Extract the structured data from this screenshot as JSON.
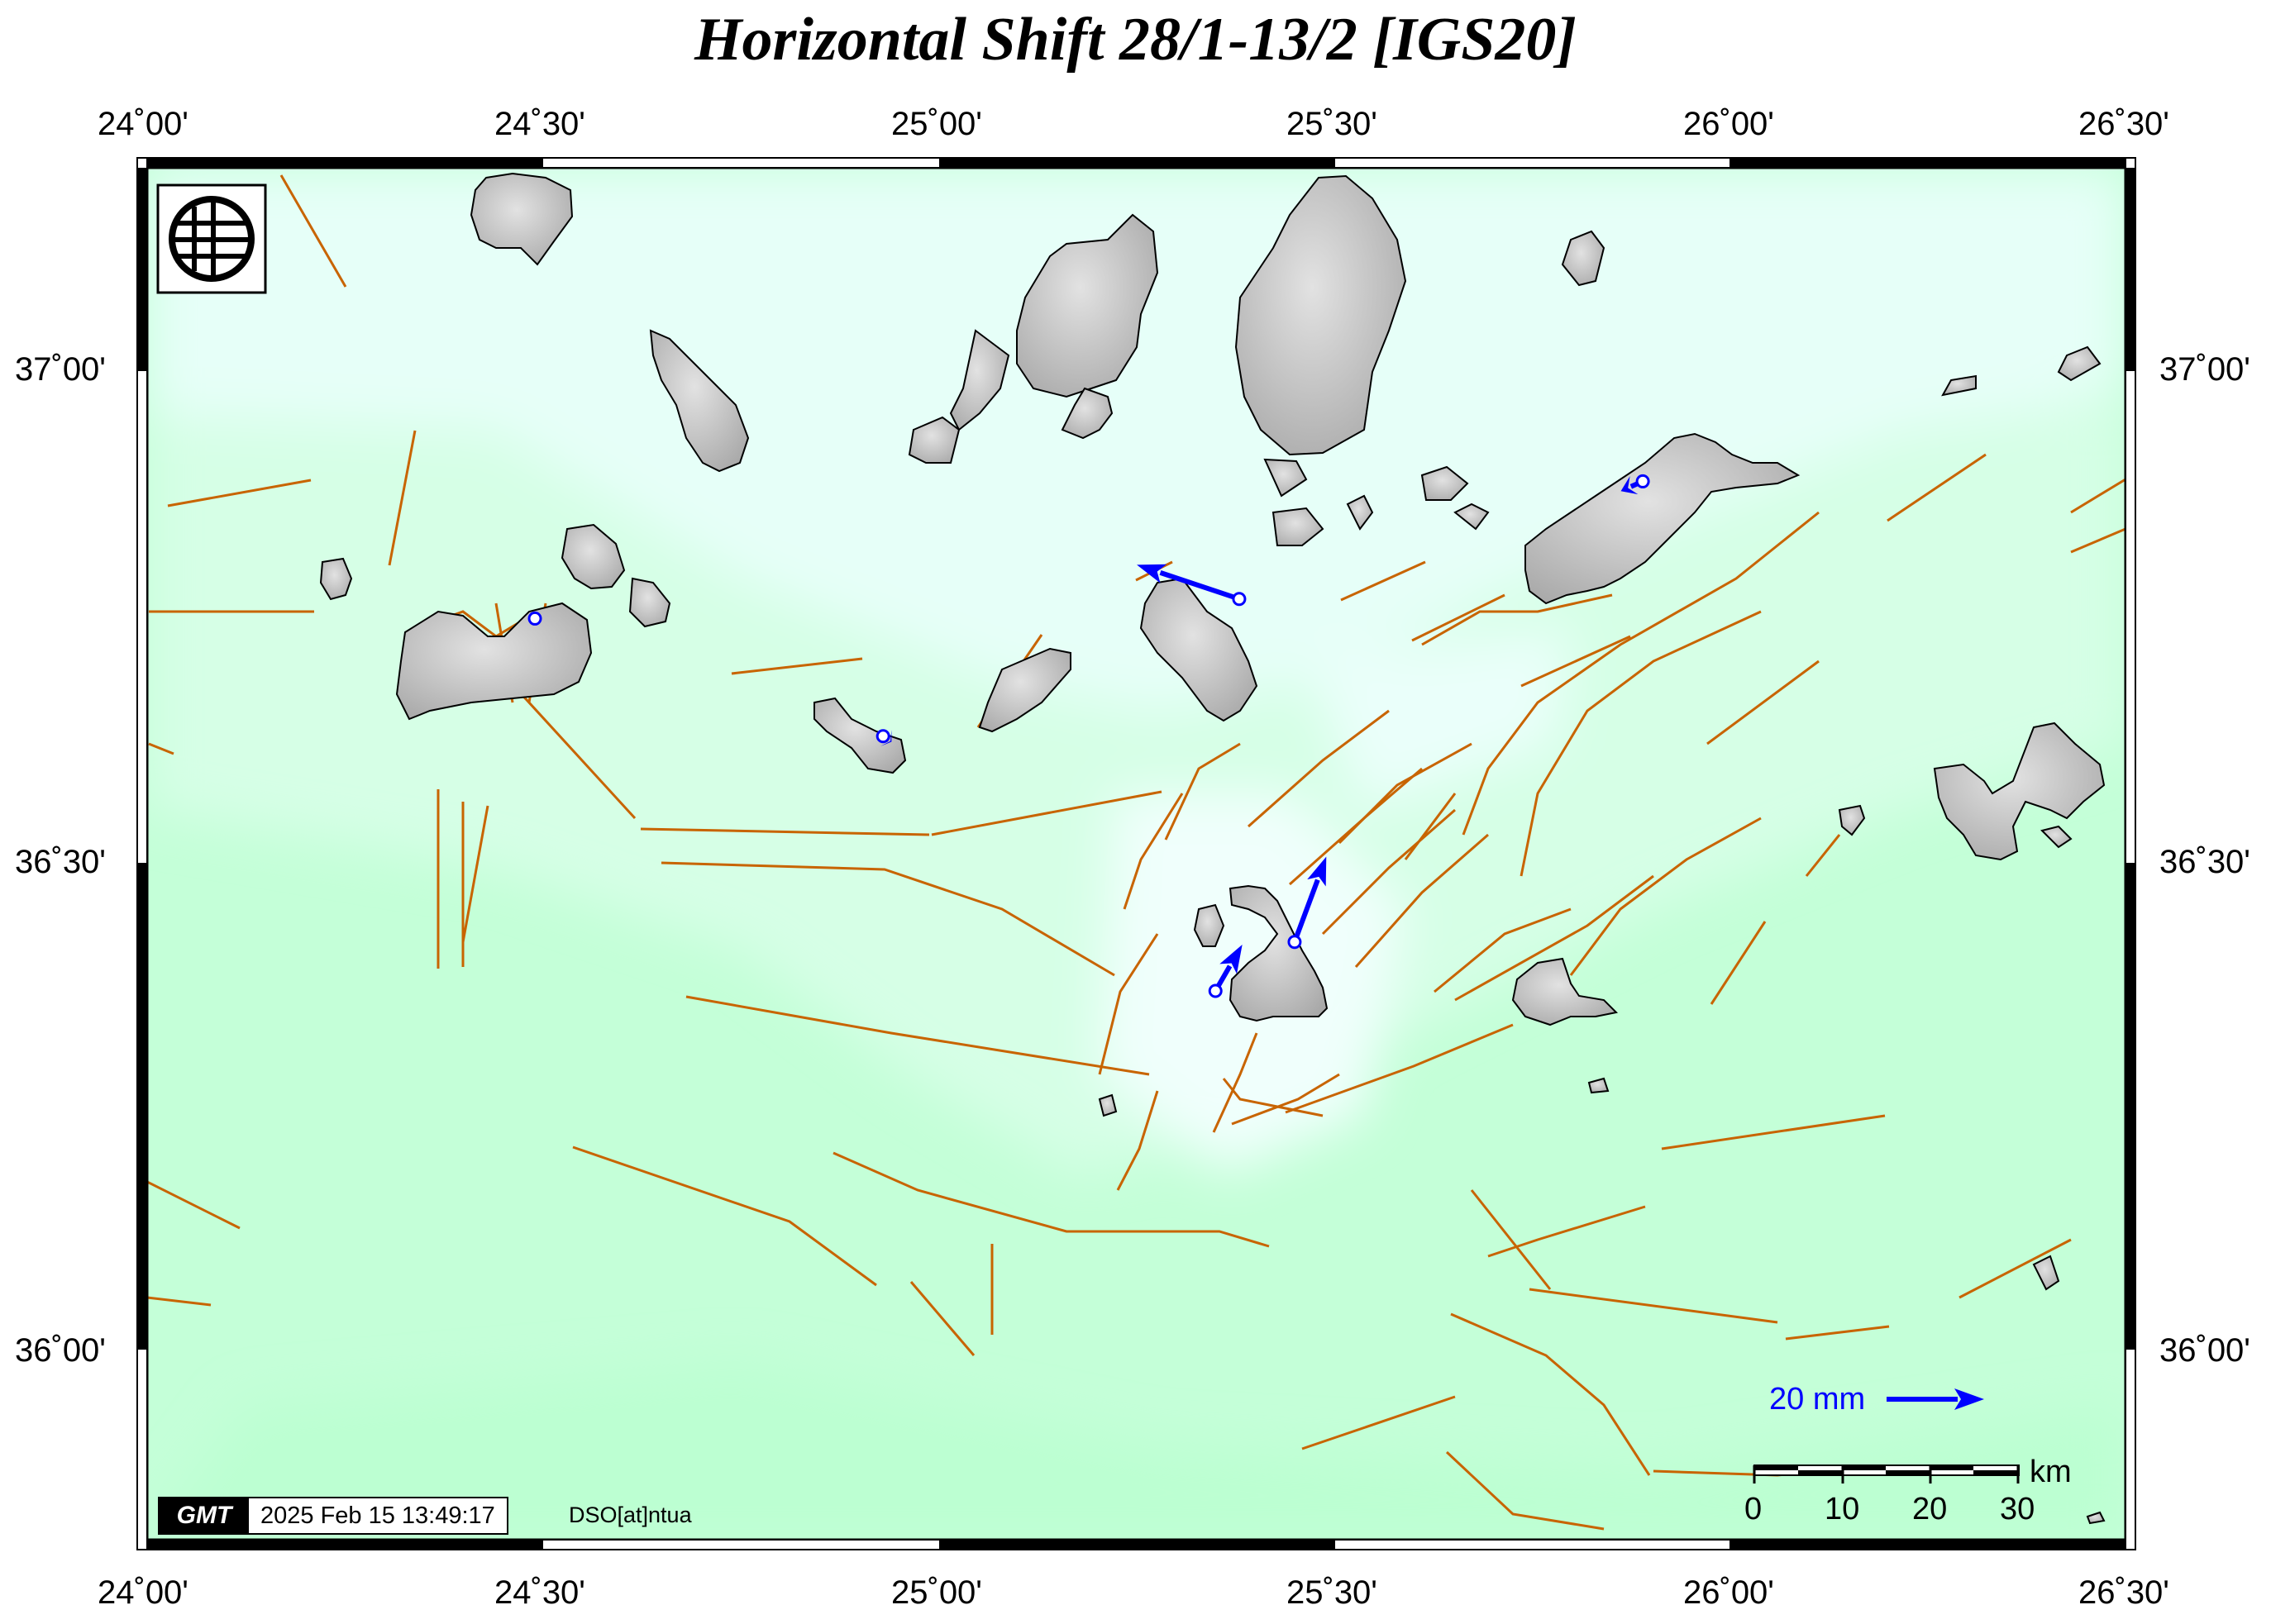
{
  "title": "Horizontal Shift 28/1-13/2 [IGS20]",
  "axes": {
    "lon_labels": [
      "24˚00'",
      "24˚30'",
      "25˚00'",
      "25˚30'",
      "26˚00'",
      "26˚30'"
    ],
    "lat_labels": [
      "37˚00'",
      "36˚30'",
      "36˚00'"
    ],
    "lon_range": [
      24.0,
      26.5
    ],
    "lat_range": [
      35.8,
      37.2
    ]
  },
  "reference_vector": {
    "label": "20 mm",
    "length_mm": 20,
    "color": "#0000ff"
  },
  "scale_bar": {
    "unit": "km",
    "ticks": [
      "0",
      "10",
      "20",
      "30"
    ]
  },
  "stamp": {
    "logo": "GMT",
    "timestamp": "2025 Feb 15 13:49:17",
    "author": "DSO[at]ntua"
  },
  "colors": {
    "land": "#c8c8c8",
    "sea_shallow": "#e6fff8",
    "sea_deep": "#c4ffd8",
    "faults": "#c86400",
    "vectors": "#0000ff",
    "frame": "#000000"
  },
  "stations": [
    {
      "lon": 24.49,
      "lat": 36.74,
      "dx_mm": 0,
      "dy_mm": 0
    },
    {
      "lon": 24.93,
      "lat": 36.62,
      "dx_mm": 1.5,
      "dy_mm": -1.0
    },
    {
      "lon": 25.38,
      "lat": 36.76,
      "dx_mm": -21,
      "dy_mm": 7
    },
    {
      "lon": 25.35,
      "lat": 36.36,
      "dx_mm": 5.5,
      "dy_mm": 9.5
    },
    {
      "lon": 25.45,
      "lat": 36.41,
      "dx_mm": 6.5,
      "dy_mm": 17.5
    },
    {
      "lon": 25.89,
      "lat": 36.88,
      "dx_mm": -4.5,
      "dy_mm": -2.0
    }
  ]
}
